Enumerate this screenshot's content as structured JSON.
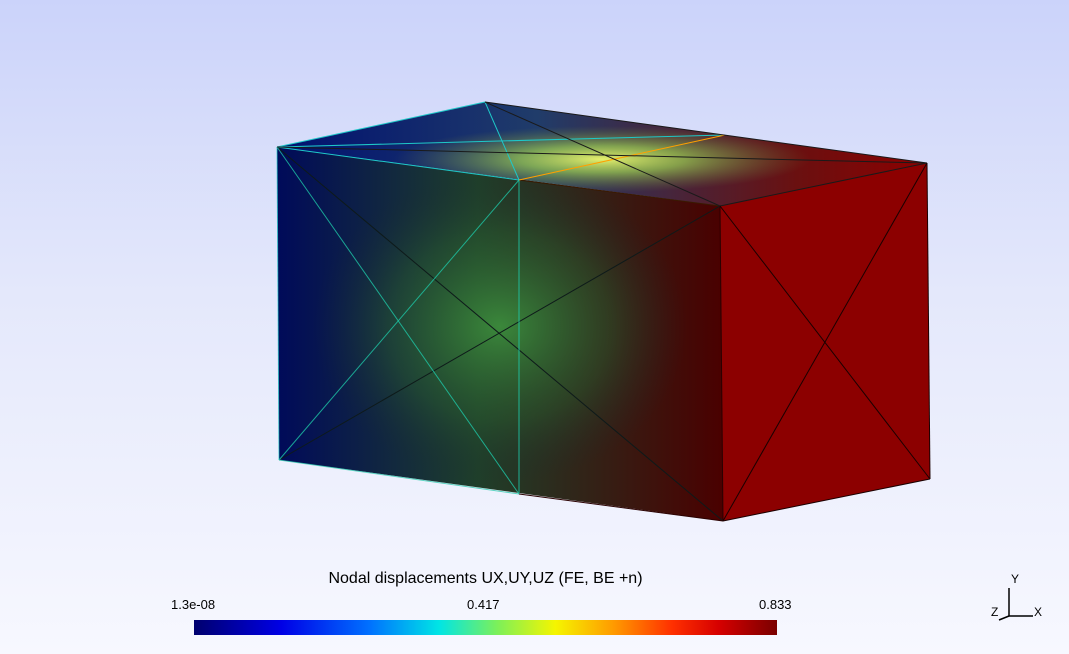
{
  "legend": {
    "title": "Nodal displacements UX,UY,UZ (FE, BE +n)",
    "min_label": "1.3e-08",
    "mid_label": "0.417",
    "max_label": "0.833",
    "colormap": [
      "#00006e",
      "#0000e6",
      "#0070ff",
      "#00e5e5",
      "#7cf05a",
      "#f5f500",
      "#ff9a00",
      "#ff3000",
      "#d60000",
      "#7a0000"
    ]
  },
  "axes": {
    "x_label": "X",
    "y_label": "Y",
    "z_label": "Z"
  },
  "colors": {
    "background_top": "#cbd3fa",
    "background_bottom": "#f7f8ff",
    "max_face": "#8c0000",
    "min_color": "#000a5a",
    "mid_color": "#3c8c3c",
    "edge_cyan": "#1ec8c8",
    "edge_orange": "#ffa000"
  }
}
